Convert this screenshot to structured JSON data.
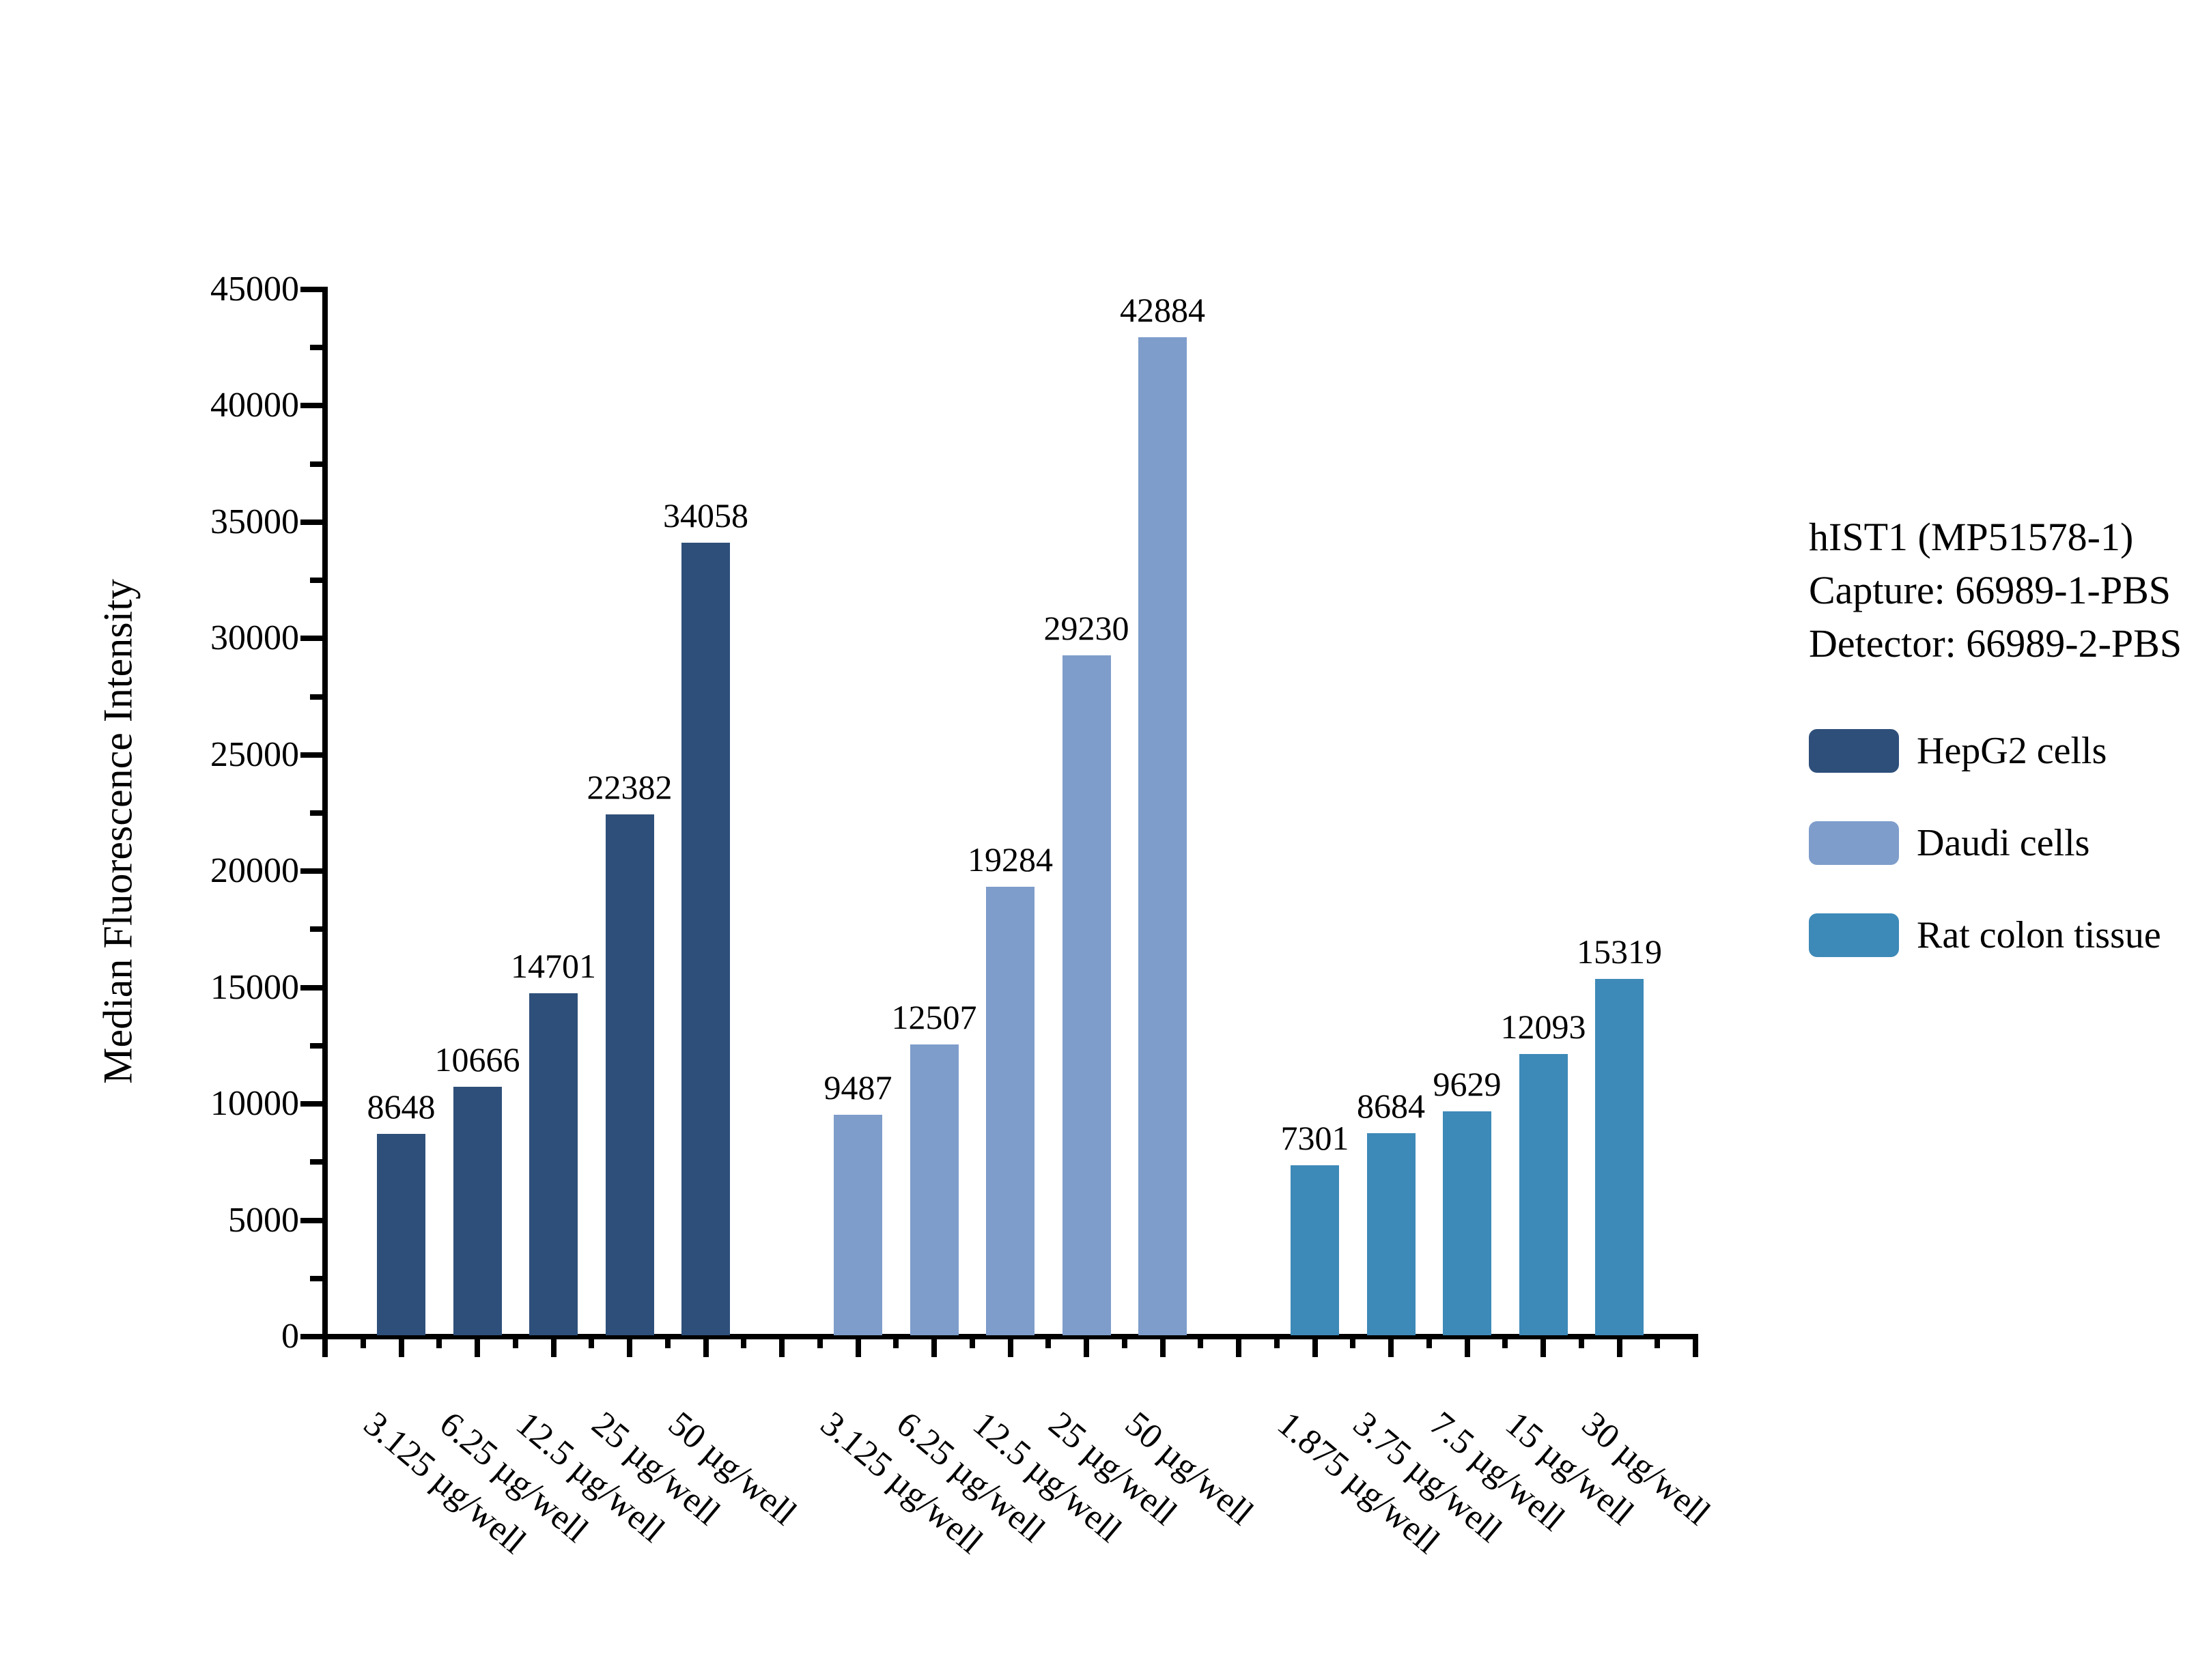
{
  "annotation": {
    "line1": "hIST1 (MP51578-1)",
    "line2": "Capture: 66989-1-PBS",
    "line3": "Detector: 66989-2-PBS"
  },
  "chart_data": {
    "type": "bar",
    "title": "",
    "xlabel": "",
    "ylabel": "Median Fluorescence Intensity",
    "ylim": [
      0,
      45000
    ],
    "ytick_step": 5000,
    "yminor_step": 2500,
    "yticks": [
      0,
      5000,
      10000,
      15000,
      20000,
      25000,
      30000,
      35000,
      40000,
      45000
    ],
    "grid": false,
    "legend_position": "right",
    "series": [
      {
        "name": "HepG2 cells",
        "color": "#2E4F7A",
        "categories": [
          "3.125 µg/well",
          "6.25 µg/well",
          "12.5 µg/well",
          "25 µg/well",
          "50 µg/well"
        ],
        "values": [
          8648,
          10666,
          14701,
          22382,
          34058
        ]
      },
      {
        "name": "Daudi cells",
        "color": "#7E9DCB",
        "categories": [
          "3.125 µg/well",
          "6.25 µg/well",
          "12.5 µg/well",
          "25 µg/well",
          "50 µg/well"
        ],
        "values": [
          9487,
          12507,
          19284,
          29230,
          42884
        ]
      },
      {
        "name": "Rat colon tissue",
        "color": "#3D89B8",
        "categories": [
          "1.875 µg/well",
          "3.75 µg/well",
          "7.5 µg/well",
          "15 µg/well",
          "30 µg/well"
        ],
        "values": [
          7301,
          8684,
          9629,
          12093,
          15319
        ]
      }
    ]
  }
}
